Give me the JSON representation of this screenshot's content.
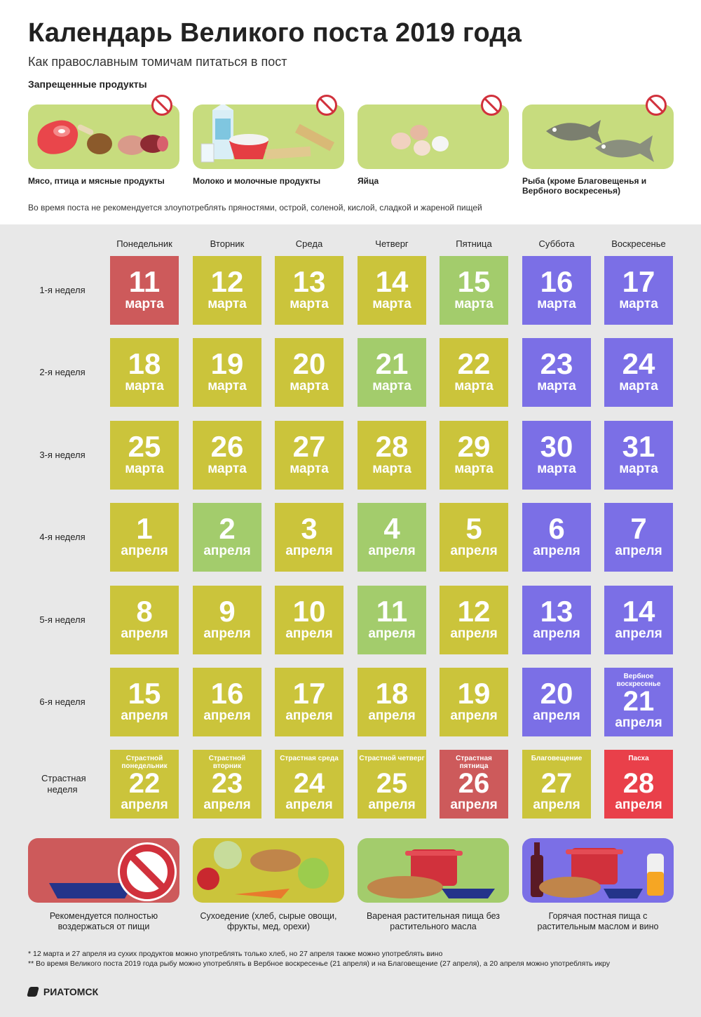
{
  "title": "Календарь Великого поста 2019 года",
  "subtitle": "Как православным томичам питаться в пост",
  "forbidden_title": "Запрещенные продукты",
  "forbidden": [
    {
      "label": "Мясо, птица и мясные продукты",
      "icon": "meat-icon"
    },
    {
      "label": "Молоко и молочные продукты",
      "icon": "dairy-icon"
    },
    {
      "label": "Яйца",
      "icon": "eggs-icon"
    },
    {
      "label": "Рыба (кроме Благовещенья и Вербного воскресенья)",
      "icon": "fish-icon"
    }
  ],
  "advisory": "Во время поста не рекомендуется злоупотреблять пряностями, острой, соленой, кислой, сладкой и жареной пищей",
  "days": [
    "Понедельник",
    "Вторник",
    "Среда",
    "Четверг",
    "Пятница",
    "Суббота",
    "Воскресенье"
  ],
  "colors": {
    "abstain": "#cd5a5b",
    "dry": "#cbc43b",
    "boiled": "#a3cc6c",
    "oil": "#7b6fe6",
    "easter": "#e9404a"
  },
  "weeks": [
    {
      "label": "1-я неделя",
      "cells": [
        {
          "num": "11",
          "month": "марта",
          "type": "abstain"
        },
        {
          "num": "12",
          "month": "марта",
          "type": "dry"
        },
        {
          "num": "13",
          "month": "марта",
          "type": "dry"
        },
        {
          "num": "14",
          "month": "марта",
          "type": "dry"
        },
        {
          "num": "15",
          "month": "марта",
          "type": "boiled"
        },
        {
          "num": "16",
          "month": "марта",
          "type": "oil"
        },
        {
          "num": "17",
          "month": "марта",
          "type": "oil"
        }
      ]
    },
    {
      "label": "2-я неделя",
      "cells": [
        {
          "num": "18",
          "month": "марта",
          "type": "dry"
        },
        {
          "num": "19",
          "month": "марта",
          "type": "dry"
        },
        {
          "num": "20",
          "month": "марта",
          "type": "dry"
        },
        {
          "num": "21",
          "month": "марта",
          "type": "boiled"
        },
        {
          "num": "22",
          "month": "марта",
          "type": "dry"
        },
        {
          "num": "23",
          "month": "марта",
          "type": "oil"
        },
        {
          "num": "24",
          "month": "марта",
          "type": "oil"
        }
      ]
    },
    {
      "label": "3-я неделя",
      "cells": [
        {
          "num": "25",
          "month": "марта",
          "type": "dry"
        },
        {
          "num": "26",
          "month": "марта",
          "type": "dry"
        },
        {
          "num": "27",
          "month": "марта",
          "type": "dry"
        },
        {
          "num": "28",
          "month": "марта",
          "type": "dry"
        },
        {
          "num": "29",
          "month": "марта",
          "type": "dry"
        },
        {
          "num": "30",
          "month": "марта",
          "type": "oil"
        },
        {
          "num": "31",
          "month": "марта",
          "type": "oil"
        }
      ]
    },
    {
      "label": "4-я неделя",
      "cells": [
        {
          "num": "1",
          "month": "апреля",
          "type": "dry"
        },
        {
          "num": "2",
          "month": "апреля",
          "type": "boiled"
        },
        {
          "num": "3",
          "month": "апреля",
          "type": "dry"
        },
        {
          "num": "4",
          "month": "апреля",
          "type": "boiled"
        },
        {
          "num": "5",
          "month": "апреля",
          "type": "dry"
        },
        {
          "num": "6",
          "month": "апреля",
          "type": "oil"
        },
        {
          "num": "7",
          "month": "апреля",
          "type": "oil"
        }
      ]
    },
    {
      "label": "5-я неделя",
      "cells": [
        {
          "num": "8",
          "month": "апреля",
          "type": "dry"
        },
        {
          "num": "9",
          "month": "апреля",
          "type": "dry"
        },
        {
          "num": "10",
          "month": "апреля",
          "type": "dry"
        },
        {
          "num": "11",
          "month": "апреля",
          "type": "boiled"
        },
        {
          "num": "12",
          "month": "апреля",
          "type": "dry"
        },
        {
          "num": "13",
          "month": "апреля",
          "type": "oil"
        },
        {
          "num": "14",
          "month": "апреля",
          "type": "oil"
        }
      ]
    },
    {
      "label": "6-я неделя",
      "cells": [
        {
          "num": "15",
          "month": "апреля",
          "type": "dry"
        },
        {
          "num": "16",
          "month": "апреля",
          "type": "dry"
        },
        {
          "num": "17",
          "month": "апреля",
          "type": "dry"
        },
        {
          "num": "18",
          "month": "апреля",
          "type": "dry"
        },
        {
          "num": "19",
          "month": "апреля",
          "type": "dry"
        },
        {
          "num": "20",
          "month": "апреля",
          "type": "oil"
        },
        {
          "num": "21",
          "month": "апреля",
          "type": "oil",
          "note": "Вербное воскресенье"
        }
      ]
    },
    {
      "label": "Страстная неделя",
      "cells": [
        {
          "num": "22",
          "month": "апреля",
          "type": "dry",
          "note": "Страстной понедельник"
        },
        {
          "num": "23",
          "month": "апреля",
          "type": "dry",
          "note": "Страстной вторник"
        },
        {
          "num": "24",
          "month": "апреля",
          "type": "dry",
          "note": "Страстная среда"
        },
        {
          "num": "25",
          "month": "апреля",
          "type": "dry",
          "note": "Страстной четверг"
        },
        {
          "num": "26",
          "month": "апреля",
          "type": "abstain",
          "note": "Страстная пятница"
        },
        {
          "num": "27",
          "month": "апреля",
          "type": "dry",
          "note": "Благовещение"
        },
        {
          "num": "28",
          "month": "апреля",
          "type": "easter",
          "note": "Пасха"
        }
      ]
    }
  ],
  "legend": [
    {
      "type": "abstain",
      "label": "Рекомендуется полностью воздержаться от пищи"
    },
    {
      "type": "dry",
      "label": "Сухоедение (хлеб, сырые овощи, фрукты, мед, орехи)"
    },
    {
      "type": "boiled",
      "label": "Вареная растительная пища без растительного масла"
    },
    {
      "type": "oil",
      "label": "Горячая постная пища с растительным маслом и вино"
    }
  ],
  "footnotes": [
    "* 12 марта и 27 апреля из сухих продуктов можно употреблять только хлеб, но 27 апреля также можно употреблять вино",
    "** Во время Великого поста 2019 года рыбу можно употреблять в Вербное воскресенье (21 апреля) и на Благовещение (27 апреля), а 20 апреля можно употреблять икру"
  ],
  "logo": "РИАТОМСК"
}
